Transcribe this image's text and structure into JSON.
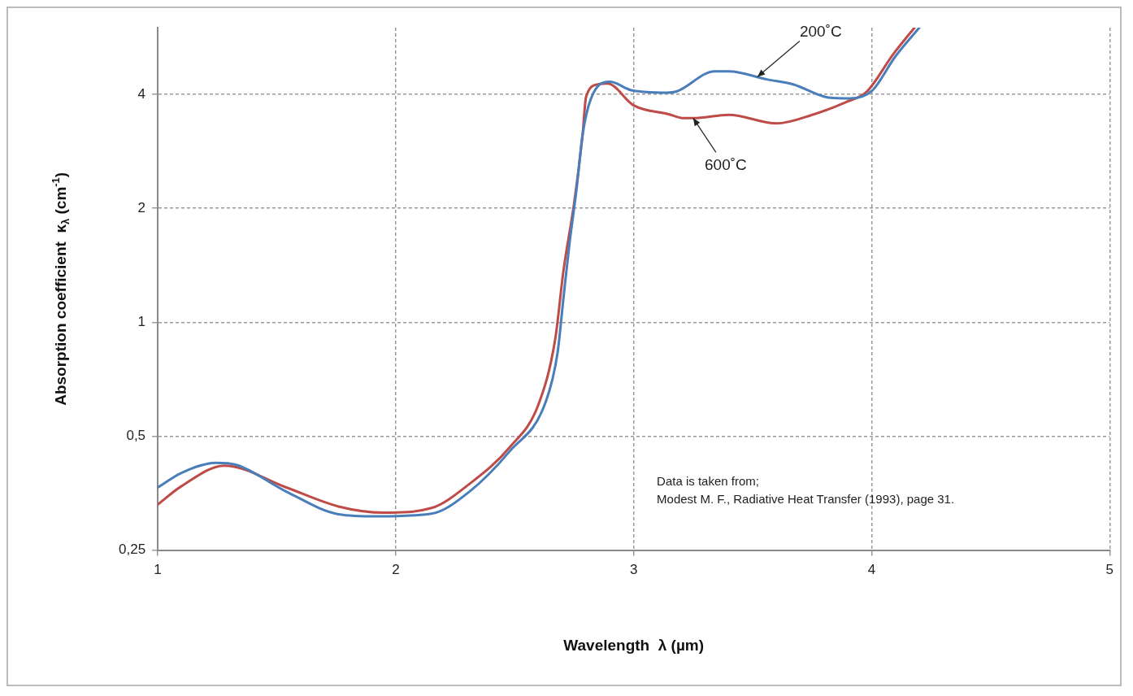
{
  "chart_data": {
    "type": "line",
    "xlabel": "Wavelength  λ (µm)",
    "ylabel": "Absorption coefficient  κ$_{λ}$ (cm$^{-1}$)",
    "log": "y",
    "xlim": [
      1,
      5
    ],
    "xticks": [
      1,
      2,
      3,
      4,
      5
    ],
    "ylim": [
      0.25,
      6
    ],
    "yticks": [
      {
        "value": 0.25,
        "label": "0,25"
      },
      {
        "value": 0.5,
        "label": "0,5"
      },
      1,
      2,
      4
    ],
    "grid": true,
    "legend": false,
    "marker": "none",
    "line_style": "solid",
    "series": [
      {
        "color": "#4a7ebb",
        "x": [
          1.0,
          1.1,
          1.245,
          1.33,
          1.54,
          1.76,
          1.92,
          2.15,
          2.31,
          2.48,
          2.63,
          2.68,
          2.705,
          2.73,
          2.76,
          2.785,
          2.82,
          2.9,
          2.99,
          3.14,
          3.18,
          3.34,
          3.4,
          3.56,
          3.67,
          3.82,
          3.91,
          4.0,
          4.1,
          4.2
        ],
        "values": [
          0.366,
          0.4,
          0.425,
          0.42,
          0.357,
          0.311,
          0.307,
          0.312,
          0.357,
          0.457,
          0.615,
          0.83,
          1.16,
          1.61,
          2.25,
          3.12,
          3.89,
          4.32,
          4.1,
          4.04,
          4.07,
          4.6,
          4.6,
          4.38,
          4.25,
          3.92,
          3.9,
          4.08,
          5.04,
          6.0
        ]
      },
      {
        "color": "#be4b48",
        "x": [
          1.0,
          1.1,
          1.28,
          1.54,
          1.76,
          1.95,
          2.15,
          2.31,
          2.48,
          2.6,
          2.67,
          2.705,
          2.75,
          2.785,
          2.8,
          2.85,
          2.89,
          3.0,
          3.15,
          3.21,
          3.25,
          3.4,
          3.6,
          3.75,
          3.89,
          3.98,
          4.09,
          4.18
        ],
        "values": [
          0.33,
          0.369,
          0.418,
          0.366,
          0.326,
          0.314,
          0.323,
          0.374,
          0.468,
          0.607,
          0.9,
          1.37,
          2.07,
          3.12,
          3.94,
          4.25,
          4.27,
          3.74,
          3.54,
          3.46,
          3.46,
          3.53,
          3.35,
          3.53,
          3.81,
          4.07,
          5.1,
          6.0
        ]
      }
    ],
    "annotations": [
      {
        "text": "200˚C",
        "x": 3.52,
        "y": 4.45
      },
      {
        "text": "600˚C",
        "x": 3.25,
        "y": 3.46
      },
      "Data is taken from;\nModest M. F., Radiative Heat Transfer (1993), page 31."
    ]
  }
}
